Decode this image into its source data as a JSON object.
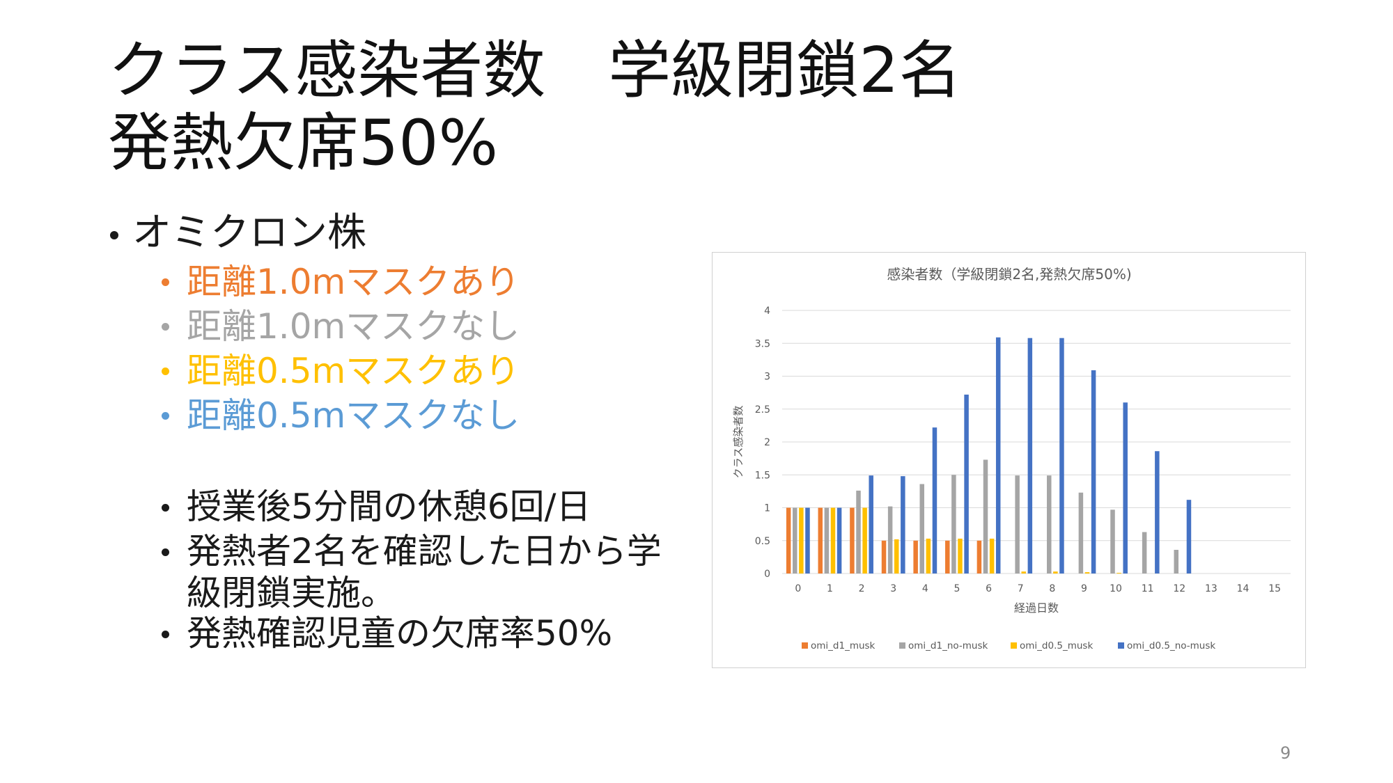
{
  "slide": {
    "title_line1": "クラス感染者数　学級閉鎖2名",
    "title_line2": "発熱欠席50%",
    "page_number": "9"
  },
  "bullets": {
    "main": "オミクロン株",
    "conditions": [
      {
        "text": "距離1.0mマスクあり",
        "color": "#ED7D31"
      },
      {
        "text": "距離1.0mマスクなし",
        "color": "#A5A5A5"
      },
      {
        "text": "距離0.5mマスクあり",
        "color": "#FFC000"
      },
      {
        "text": "距離0.5mマスクなし",
        "color": "#5B9BD5"
      }
    ],
    "notes": [
      {
        "lines": [
          "授業後5分間の休憩6回/日"
        ]
      },
      {
        "lines": [
          "発熱者2名を確認した日から学",
          "級閉鎖実施。"
        ]
      },
      {
        "lines": [
          "発熱確認児童の欠席率50%"
        ]
      }
    ]
  },
  "chart_data": {
    "type": "bar",
    "title": "感染者数（学級閉鎖2名,発熱欠席50%)",
    "xlabel": "経過日数",
    "ylabel": "クラス感染者数",
    "ylim": [
      0,
      4
    ],
    "yticks": [
      "0",
      "0.5",
      "1",
      "1.5",
      "2",
      "2.5",
      "3",
      "3.5",
      "4"
    ],
    "categories": [
      "0",
      "1",
      "2",
      "3",
      "4",
      "5",
      "6",
      "7",
      "8",
      "9",
      "10",
      "11",
      "12",
      "13",
      "14",
      "15"
    ],
    "grid": true,
    "legend_position": "bottom",
    "series": [
      {
        "name": "omi_d1_musk",
        "color": "#ED7D31",
        "values": [
          1,
          1,
          1,
          0.5,
          0.5,
          0.5,
          0.5,
          0,
          0,
          0,
          0,
          0,
          0,
          0,
          0,
          0
        ]
      },
      {
        "name": "omi_d1_no-musk",
        "color": "#A5A5A5",
        "values": [
          1,
          1,
          1.26,
          1.02,
          1.36,
          1.5,
          1.73,
          1.49,
          1.49,
          1.23,
          0.97,
          0.63,
          0.36,
          0,
          0,
          0
        ]
      },
      {
        "name": "omi_d0.5_musk",
        "color": "#FFC000",
        "values": [
          1,
          1,
          1,
          0.52,
          0.53,
          0.53,
          0.53,
          0.03,
          0.03,
          0.02,
          0.01,
          0,
          0,
          0,
          0,
          0
        ]
      },
      {
        "name": "omi_d0.5_no-musk",
        "color": "#4472C4",
        "values": [
          1,
          1,
          1.49,
          1.48,
          2.22,
          2.72,
          3.59,
          3.58,
          3.58,
          3.09,
          2.6,
          1.86,
          1.12,
          0,
          0,
          0
        ]
      }
    ]
  }
}
